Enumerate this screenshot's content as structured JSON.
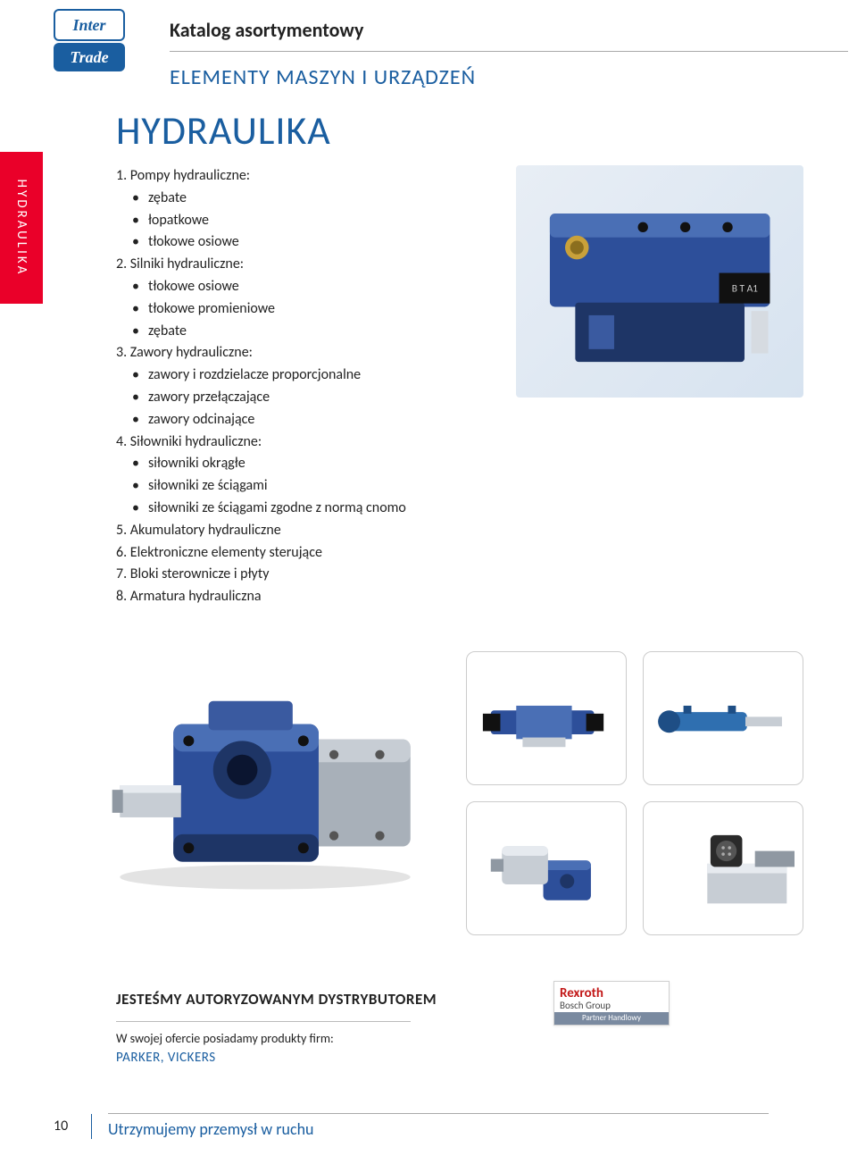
{
  "logo": {
    "line1": "Inter",
    "line2": "Trade"
  },
  "header": {
    "catalog": "Katalog asortymentowy",
    "section": "ELEMENTY MASZYN I URZĄDZEŃ"
  },
  "side_tab": "HYDRAULIKA",
  "page_title": "HYDRAULIKA",
  "list": [
    {
      "num": "1.",
      "title": "Pompy hydrauliczne:",
      "bullets": [
        "zębate",
        "łopatkowe",
        "tłokowe osiowe"
      ]
    },
    {
      "num": "2.",
      "title": "Silniki hydrauliczne:",
      "bullets": [
        "tłokowe osiowe",
        "tłokowe promieniowe",
        "zębate"
      ]
    },
    {
      "num": "3.",
      "title": "Zawory hydrauliczne:",
      "bullets": [
        "zawory i rozdzielacze proporcjonalne",
        "zawory przełączające",
        "zawory odcinające"
      ]
    },
    {
      "num": "4.",
      "title": "Siłowniki hydrauliczne:",
      "bullets": [
        "siłowniki okrągłe",
        "siłowniki ze ściągami",
        "siłowniki ze ściągami zgodne z normą cnomo"
      ]
    },
    {
      "num": "5.",
      "title": "Akumulatory hydrauliczne",
      "bullets": []
    },
    {
      "num": "6.",
      "title": "Elektroniczne elementy sterujące",
      "bullets": []
    },
    {
      "num": "7.",
      "title": "Bloki sterownicze i płyty",
      "bullets": []
    },
    {
      "num": "8.",
      "title": "Armatura hydrauliczna",
      "bullets": []
    }
  ],
  "distributor": {
    "headline": "JESTEŚMY AUTORYZOWANYM DYSTRYBUTOREM",
    "sub1": "W swojej ofercie posiadamy produkty firm:",
    "sub2": "PARKER, VICKERS",
    "badge": {
      "line1": "Rexroth",
      "line2": "Bosch Group",
      "band": "Partner Handlowy"
    }
  },
  "footer": {
    "page_number": "10",
    "motto": "Utrzymujemy przemysł w ruchu"
  },
  "colors": {
    "brand_blue": "#1a5ea0",
    "accent_red": "#ea0029",
    "pump_blue": "#2d4f9a",
    "pump_blue_dark": "#1e3566",
    "steel": "#a8b0b9",
    "steel_light": "#d6dbe1"
  }
}
